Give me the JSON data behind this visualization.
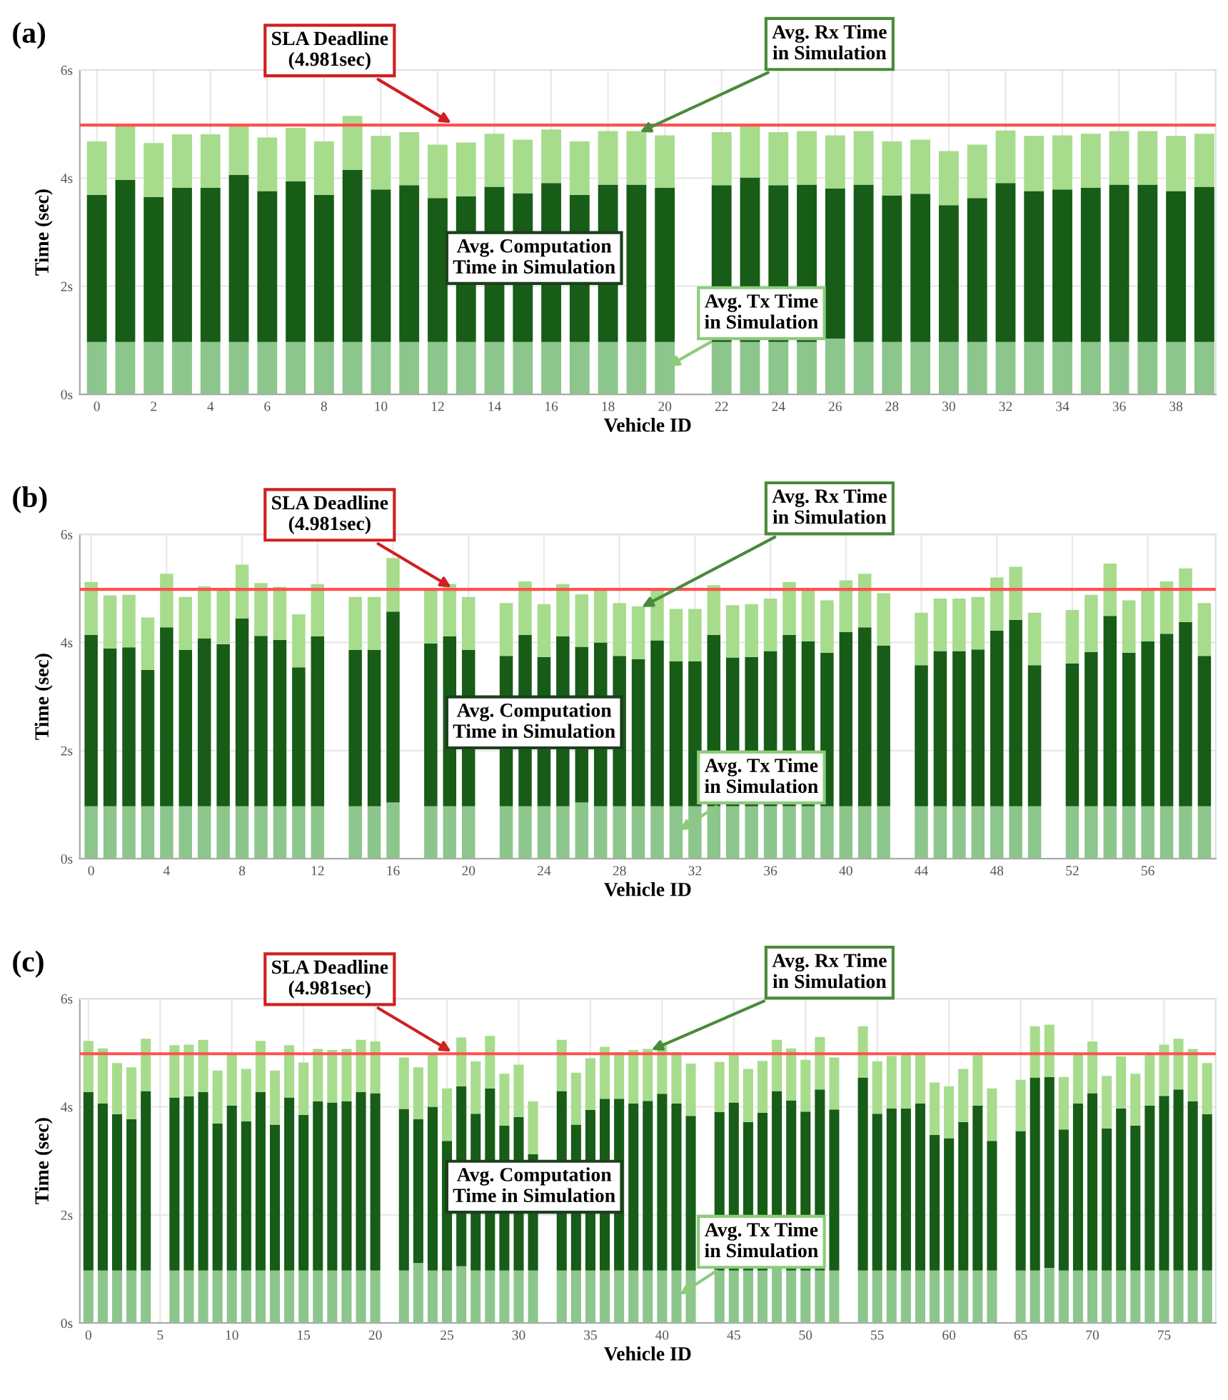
{
  "chart_data": [
    {
      "type": "bar",
      "stacked": true,
      "title": "(a)",
      "xlabel": "Vehicle ID",
      "ylabel": "Time (sec)",
      "x": [
        0,
        1,
        2,
        3,
        4,
        5,
        6,
        7,
        8,
        9,
        10,
        11,
        12,
        13,
        14,
        15,
        16,
        17,
        18,
        19,
        20,
        21,
        22,
        23,
        24,
        25,
        26,
        27,
        28,
        29,
        30,
        31,
        32,
        33,
        34,
        35,
        36,
        37,
        38,
        39
      ],
      "series": [
        {
          "name": "Avg. Tx Time\nin Simulation",
          "color": "#8cc68c",
          "values": [
            0.97,
            0.97,
            0.97,
            0.97,
            0.97,
            0.97,
            0.97,
            0.97,
            0.97,
            0.97,
            0.97,
            0.97,
            0.97,
            0.97,
            0.97,
            0.97,
            0.97,
            0.97,
            0.97,
            0.97,
            0.97,
            null,
            0.97,
            0.97,
            0.97,
            0.97,
            1.03,
            0.97,
            0.97,
            0.97,
            0.97,
            0.97,
            0.97,
            0.97,
            0.97,
            0.97,
            0.97,
            0.97,
            0.97,
            0.97
          ]
        },
        {
          "name": "Avg. Computation\nTime in Simulation",
          "color": "#175c17",
          "values": [
            2.72,
            3.0,
            2.68,
            2.85,
            2.85,
            3.09,
            2.79,
            2.97,
            2.72,
            3.18,
            2.82,
            2.9,
            2.66,
            2.69,
            2.87,
            2.75,
            2.94,
            2.72,
            2.91,
            2.91,
            2.85,
            null,
            2.9,
            3.04,
            2.9,
            2.91,
            2.78,
            2.91,
            2.71,
            2.74,
            2.53,
            2.66,
            2.94,
            2.79,
            2.82,
            2.85,
            2.91,
            2.91,
            2.79,
            2.87
          ]
        },
        {
          "name": "Avg. Rx Time\nin Simulation",
          "color": "#a6dc8c",
          "values": [
            0.99,
            1.03,
            1.0,
            0.99,
            0.99,
            0.94,
            0.99,
            0.99,
            0.99,
            1.0,
            0.99,
            0.98,
            0.99,
            1.0,
            0.98,
            0.99,
            0.99,
            0.99,
            0.99,
            0.99,
            0.97,
            null,
            0.98,
            0.99,
            0.98,
            0.99,
            0.98,
            0.99,
            1.0,
            1.0,
            1.0,
            0.99,
            0.97,
            1.02,
            1.0,
            1.0,
            0.99,
            0.99,
            1.02,
            0.98
          ]
        }
      ],
      "xlim": [
        -0.6,
        39.4
      ],
      "xticks": [
        0,
        2,
        4,
        6,
        8,
        10,
        12,
        14,
        16,
        18,
        20,
        22,
        24,
        26,
        28,
        30,
        32,
        34,
        36,
        38
      ],
      "ylim": [
        0,
        6
      ],
      "yticks": [
        {
          "value": 0,
          "label": "0s"
        },
        {
          "value": 2,
          "label": "2s"
        },
        {
          "value": 4,
          "label": "4s"
        },
        {
          "value": 6,
          "label": "6s"
        }
      ],
      "ref_lines": [
        {
          "axis": "y",
          "value": 4.981,
          "label": "SLA Deadline\n(4.981sec)",
          "color": "#ff5050"
        }
      ],
      "grid": true
    },
    {
      "type": "bar",
      "stacked": true,
      "title": "(b)",
      "xlabel": "Vehicle ID",
      "ylabel": "Time (sec)",
      "x": [
        0,
        1,
        2,
        3,
        4,
        5,
        6,
        7,
        8,
        9,
        10,
        11,
        12,
        13,
        14,
        15,
        16,
        17,
        18,
        19,
        20,
        21,
        22,
        23,
        24,
        25,
        26,
        27,
        28,
        29,
        30,
        31,
        32,
        33,
        34,
        35,
        36,
        37,
        38,
        39,
        40,
        41,
        42,
        43,
        44,
        45,
        46,
        47,
        48,
        49,
        50,
        51,
        52,
        53,
        54,
        55,
        56,
        57,
        58,
        59
      ],
      "series": [
        {
          "name": "Avg. Tx Time\nin Simulation",
          "color": "#8cc68c",
          "values": [
            0.97,
            0.97,
            0.97,
            0.97,
            0.97,
            0.97,
            0.97,
            0.97,
            0.97,
            0.97,
            0.97,
            0.97,
            0.97,
            null,
            0.97,
            0.97,
            1.04,
            null,
            0.97,
            0.97,
            0.97,
            null,
            0.97,
            0.97,
            0.97,
            0.97,
            1.04,
            0.97,
            0.97,
            0.97,
            0.97,
            0.97,
            0.97,
            0.97,
            0.97,
            0.97,
            0.97,
            0.97,
            0.97,
            0.97,
            0.97,
            0.97,
            0.97,
            null,
            0.97,
            0.97,
            0.97,
            0.97,
            0.97,
            0.97,
            0.97,
            null,
            0.97,
            0.97,
            0.97,
            0.97,
            0.97,
            0.97,
            0.97,
            0.97
          ]
        },
        {
          "name": "Avg. Computation\nTime in Simulation",
          "color": "#175c17",
          "values": [
            3.17,
            2.92,
            2.94,
            2.52,
            3.31,
            2.89,
            3.1,
            3.0,
            3.47,
            3.15,
            3.08,
            2.57,
            3.14,
            null,
            2.89,
            2.89,
            3.53,
            null,
            3.01,
            3.14,
            2.89,
            null,
            2.78,
            3.17,
            2.76,
            3.14,
            2.88,
            3.03,
            2.78,
            2.72,
            3.07,
            2.68,
            2.68,
            3.17,
            2.75,
            2.76,
            2.87,
            3.17,
            3.05,
            2.84,
            3.22,
            3.31,
            2.97,
            null,
            2.61,
            2.87,
            2.87,
            2.9,
            3.25,
            3.45,
            2.61,
            null,
            2.64,
            2.85,
            3.52,
            2.84,
            3.05,
            3.19,
            3.41,
            2.78
          ]
        },
        {
          "name": "Avg. Rx Time\nin Simulation",
          "color": "#a6dc8c",
          "values": [
            0.98,
            0.98,
            0.97,
            0.97,
            0.99,
            0.98,
            0.97,
            0.99,
            1.0,
            0.98,
            0.98,
            0.98,
            0.97,
            null,
            0.98,
            0.98,
            0.99,
            null,
            0.98,
            0.97,
            0.98,
            null,
            0.98,
            0.99,
            0.98,
            0.97,
            0.97,
            0.99,
            0.98,
            0.98,
            0.93,
            0.97,
            0.97,
            0.92,
            0.97,
            0.98,
            0.97,
            0.98,
            0.97,
            0.97,
            0.96,
            0.99,
            0.97,
            null,
            0.97,
            0.97,
            0.97,
            0.97,
            0.98,
            0.98,
            0.97,
            null,
            0.99,
            1.06,
            0.97,
            0.97,
            0.97,
            0.97,
            0.99,
            0.98
          ]
        }
      ],
      "xlim": [
        -0.6,
        59.6
      ],
      "xticks": [
        0,
        4,
        8,
        12,
        16,
        20,
        24,
        28,
        32,
        36,
        40,
        44,
        48,
        52,
        56
      ],
      "ylim": [
        0,
        6
      ],
      "yticks": [
        {
          "value": 0,
          "label": "0s"
        },
        {
          "value": 2,
          "label": "2s"
        },
        {
          "value": 4,
          "label": "4s"
        },
        {
          "value": 6,
          "label": "6s"
        }
      ],
      "ref_lines": [
        {
          "axis": "y",
          "value": 4.981,
          "label": "SLA Deadline\n(4.981sec)",
          "color": "#ff5050"
        }
      ],
      "grid": true
    },
    {
      "type": "bar",
      "stacked": true,
      "title": "(c)",
      "xlabel": "Vehicle ID",
      "ylabel": "Time (sec)",
      "x": [
        0,
        1,
        2,
        3,
        4,
        5,
        6,
        7,
        8,
        9,
        10,
        11,
        12,
        13,
        14,
        15,
        16,
        17,
        18,
        19,
        20,
        21,
        22,
        23,
        24,
        25,
        26,
        27,
        28,
        29,
        30,
        31,
        32,
        33,
        34,
        35,
        36,
        37,
        38,
        39,
        40,
        41,
        42,
        43,
        44,
        45,
        46,
        47,
        48,
        49,
        50,
        51,
        52,
        53,
        54,
        55,
        56,
        57,
        58,
        59,
        60,
        61,
        62,
        63,
        64,
        65,
        66,
        67,
        68,
        69,
        70,
        71,
        72,
        73,
        74,
        75,
        76,
        77,
        78
      ],
      "series": [
        {
          "name": "Avg. Tx Time\nin Simulation",
          "color": "#8cc68c",
          "values": [
            0.97,
            0.97,
            0.97,
            0.97,
            0.97,
            null,
            0.97,
            0.97,
            0.97,
            0.97,
            0.97,
            0.97,
            0.97,
            0.97,
            0.97,
            0.97,
            0.97,
            0.97,
            0.97,
            0.97,
            0.97,
            null,
            0.97,
            1.11,
            0.97,
            0.97,
            1.05,
            0.97,
            0.97,
            0.97,
            0.97,
            0.97,
            null,
            0.97,
            0.97,
            0.97,
            0.97,
            0.97,
            0.97,
            0.97,
            0.97,
            0.97,
            0.97,
            null,
            0.97,
            0.97,
            0.97,
            0.97,
            1.04,
            0.97,
            0.97,
            0.97,
            0.97,
            null,
            0.97,
            0.97,
            0.97,
            0.97,
            0.97,
            0.97,
            0.97,
            0.97,
            0.97,
            0.97,
            null,
            0.97,
            0.97,
            1.02,
            0.97,
            0.97,
            0.97,
            0.97,
            0.97,
            0.97,
            0.97,
            0.97,
            0.97,
            0.97,
            0.97
          ]
        },
        {
          "name": "Avg. Computation\nTime in Simulation",
          "color": "#175c17",
          "values": [
            3.3,
            3.09,
            2.89,
            2.8,
            3.32,
            null,
            3.2,
            3.22,
            3.3,
            2.72,
            3.05,
            2.76,
            3.3,
            2.7,
            3.2,
            2.88,
            3.13,
            3.11,
            3.13,
            3.3,
            3.28,
            null,
            2.99,
            2.66,
            3.03,
            2.4,
            3.33,
            2.9,
            3.37,
            2.68,
            2.84,
            2.15,
            null,
            3.32,
            2.7,
            2.97,
            3.18,
            3.18,
            3.09,
            3.14,
            3.27,
            3.09,
            2.86,
            null,
            2.93,
            3.11,
            2.75,
            2.92,
            3.25,
            3.15,
            2.94,
            3.35,
            2.98,
            null,
            3.57,
            2.9,
            3.0,
            3.0,
            3.09,
            2.51,
            2.45,
            2.75,
            3.05,
            2.4,
            null,
            2.58,
            3.57,
            3.53,
            2.61,
            3.09,
            3.28,
            2.63,
            3.0,
            2.68,
            3.05,
            3.23,
            3.35,
            3.13,
            2.89
          ]
        },
        {
          "name": "Avg. Rx Time\nin Simulation",
          "color": "#a6dc8c",
          "values": [
            0.95,
            1.02,
            0.95,
            0.96,
            0.97,
            null,
            0.97,
            0.96,
            0.97,
            0.98,
            0.96,
            0.97,
            0.95,
            1.0,
            0.97,
            0.97,
            0.97,
            0.97,
            0.97,
            0.97,
            0.96,
            null,
            0.95,
            0.96,
            0.98,
            0.97,
            0.9,
            0.97,
            0.97,
            0.96,
            0.97,
            0.98,
            null,
            0.95,
            0.96,
            0.96,
            0.96,
            0.86,
            0.99,
            0.96,
            0.95,
            0.95,
            0.97,
            null,
            0.93,
            0.9,
            0.98,
            0.96,
            0.95,
            0.96,
            0.96,
            0.97,
            0.96,
            null,
            0.95,
            0.97,
            0.97,
            0.99,
            0.94,
            0.97,
            0.96,
            0.98,
            0.94,
            0.97,
            null,
            0.95,
            0.95,
            0.97,
            0.97,
            0.94,
            0.96,
            0.97,
            0.96,
            0.96,
            0.94,
            0.95,
            0.94,
            0.97,
            0.95
          ]
        }
      ],
      "xlim": [
        -0.6,
        78.6
      ],
      "xticks": [
        0,
        5,
        10,
        15,
        20,
        25,
        30,
        35,
        40,
        45,
        50,
        55,
        60,
        65,
        70,
        75
      ],
      "ylim": [
        0,
        6
      ],
      "yticks": [
        {
          "value": 0,
          "label": "0s"
        },
        {
          "value": 2,
          "label": "2s"
        },
        {
          "value": 4,
          "label": "4s"
        },
        {
          "value": 6,
          "label": "6s"
        }
      ],
      "ref_lines": [
        {
          "axis": "y",
          "value": 4.981,
          "label": "SLA Deadline\n(4.981sec)",
          "color": "#ff5050"
        }
      ],
      "grid": true
    }
  ]
}
